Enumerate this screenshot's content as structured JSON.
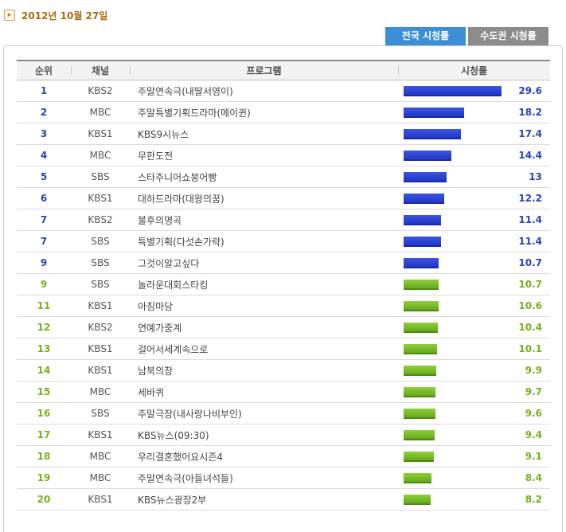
{
  "date": "2012년 10월 27일",
  "tabs": [
    {
      "label": "전국 시청률",
      "active": true
    },
    {
      "label": "수도권 시청률",
      "active": false
    }
  ],
  "table": {
    "headers": {
      "rank": "순위",
      "channel": "채널",
      "program": "프로그램",
      "rating": "시청률"
    },
    "max_rating": 29.6,
    "rows": [
      {
        "rank": "1",
        "channel": "KBS2",
        "program": "주말연속극(내딸서영이)",
        "rating": "29.6",
        "value": 29.6,
        "color": "blue"
      },
      {
        "rank": "2",
        "channel": "MBC",
        "program": "주말특별기획드라마(메이퀸)",
        "rating": "18.2",
        "value": 18.2,
        "color": "blue"
      },
      {
        "rank": "3",
        "channel": "KBS1",
        "program": "KBS9시뉴스",
        "rating": "17.4",
        "value": 17.4,
        "color": "blue"
      },
      {
        "rank": "4",
        "channel": "MBC",
        "program": "무한도전",
        "rating": "14.4",
        "value": 14.4,
        "color": "blue"
      },
      {
        "rank": "5",
        "channel": "SBS",
        "program": "스타주니어쇼붕어빵",
        "rating": "13",
        "value": 13,
        "color": "blue"
      },
      {
        "rank": "6",
        "channel": "KBS1",
        "program": "대하드라마(대왕의꿈)",
        "rating": "12.2",
        "value": 12.2,
        "color": "blue"
      },
      {
        "rank": "7",
        "channel": "KBS2",
        "program": "불후의명곡",
        "rating": "11.4",
        "value": 11.4,
        "color": "blue"
      },
      {
        "rank": "7",
        "channel": "SBS",
        "program": "특별기획(다섯손가락)",
        "rating": "11.4",
        "value": 11.4,
        "color": "blue"
      },
      {
        "rank": "9",
        "channel": "SBS",
        "program": "그것이알고싶다",
        "rating": "10.7",
        "value": 10.7,
        "color": "blue"
      },
      {
        "rank": "9",
        "channel": "SBS",
        "program": "놀라운대회스타킹",
        "rating": "10.7",
        "value": 10.7,
        "color": "green"
      },
      {
        "rank": "11",
        "channel": "KBS1",
        "program": "아침마당",
        "rating": "10.6",
        "value": 10.6,
        "color": "green"
      },
      {
        "rank": "12",
        "channel": "KBS2",
        "program": "연예가중계",
        "rating": "10.4",
        "value": 10.4,
        "color": "green"
      },
      {
        "rank": "13",
        "channel": "KBS1",
        "program": "걸어서세계속으로",
        "rating": "10.1",
        "value": 10.1,
        "color": "green"
      },
      {
        "rank": "14",
        "channel": "KBS1",
        "program": "남북의창",
        "rating": "9.9",
        "value": 9.9,
        "color": "green"
      },
      {
        "rank": "15",
        "channel": "MBC",
        "program": "세바퀴",
        "rating": "9.7",
        "value": 9.7,
        "color": "green"
      },
      {
        "rank": "16",
        "channel": "SBS",
        "program": "주말극장(내사랑나비부인)",
        "rating": "9.6",
        "value": 9.6,
        "color": "green"
      },
      {
        "rank": "17",
        "channel": "KBS1",
        "program": "KBS뉴스(09:30)",
        "rating": "9.4",
        "value": 9.4,
        "color": "green"
      },
      {
        "rank": "18",
        "channel": "MBC",
        "program": "우리결혼했어요시즌4",
        "rating": "9.1",
        "value": 9.1,
        "color": "green"
      },
      {
        "rank": "19",
        "channel": "MBC",
        "program": "주말연속극(아들녀석들)",
        "rating": "8.4",
        "value": 8.4,
        "color": "green"
      },
      {
        "rank": "20",
        "channel": "KBS1",
        "program": "KBS뉴스광장2부",
        "rating": "8.2",
        "value": 8.2,
        "color": "green"
      }
    ]
  }
}
